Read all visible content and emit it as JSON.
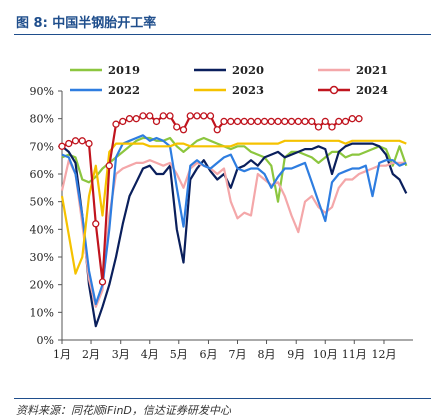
{
  "figure": {
    "title": "图 8:  中国半钢胎开工率",
    "source": "资料来源：同花顺iFinD，信达证券研发中心"
  },
  "chart_data": {
    "type": "line",
    "title": "",
    "xlabel": "",
    "ylabel": "",
    "ylim": [
      0,
      90
    ],
    "y_ticks": [
      0,
      10,
      20,
      30,
      40,
      50,
      60,
      70,
      80,
      90
    ],
    "y_tick_labels": [
      "0%",
      "10%",
      "20%",
      "30%",
      "40%",
      "50%",
      "60%",
      "70%",
      "80%",
      "90%"
    ],
    "x_unit": "week of year",
    "xlim": [
      1,
      53
    ],
    "x_ticks": [
      1,
      5.3,
      9.7,
      14,
      18.3,
      22.7,
      27,
      31.3,
      35.7,
      40,
      44.3,
      48.7
    ],
    "x_tick_labels": [
      "1月",
      "2月",
      "3月",
      "4月",
      "5月",
      "6月",
      "7月",
      "8月",
      "9月",
      "10月",
      "11月",
      "12月"
    ],
    "grid": false,
    "legend_position": "top",
    "series": [
      {
        "name": "2019",
        "color": "#8cc63f",
        "marker": false,
        "x": [
          1,
          2,
          3,
          4,
          5,
          6,
          7,
          8,
          9,
          10,
          11,
          12,
          13,
          14,
          15,
          16,
          17,
          18,
          19,
          20,
          21,
          22,
          23,
          24,
          25,
          26,
          27,
          28,
          29,
          30,
          31,
          32,
          33,
          34,
          35,
          36,
          37,
          38,
          39,
          40,
          41,
          42,
          43,
          44,
          45,
          46,
          47,
          48,
          49,
          50,
          51,
          52
        ],
        "values": [
          66,
          67,
          66,
          58,
          57,
          59,
          62,
          64,
          66,
          68,
          70,
          72,
          73,
          73,
          72,
          72,
          73,
          70,
          68,
          70,
          72,
          73,
          72,
          71,
          70,
          69,
          70,
          70,
          68,
          67,
          66,
          63,
          50,
          66,
          68,
          68,
          67,
          66,
          64,
          66,
          68,
          68,
          66,
          67,
          67,
          68,
          69,
          70,
          69,
          63,
          70,
          63
        ]
      },
      {
        "name": "2020",
        "color": "#0a1f5c",
        "marker": false,
        "x": [
          1,
          2,
          3,
          4,
          5,
          6,
          7,
          8,
          9,
          10,
          11,
          12,
          13,
          14,
          15,
          16,
          17,
          18,
          19,
          20,
          21,
          22,
          23,
          24,
          25,
          26,
          27,
          28,
          29,
          30,
          31,
          32,
          33,
          34,
          35,
          36,
          37,
          38,
          39,
          40,
          41,
          42,
          43,
          44,
          45,
          46,
          47,
          48,
          49,
          50,
          51,
          52
        ],
        "values": [
          70,
          68,
          64,
          45,
          20,
          5,
          12,
          20,
          30,
          42,
          52,
          57,
          62,
          63,
          60,
          60,
          63,
          40,
          28,
          58,
          62,
          65,
          61,
          58,
          60,
          55,
          62,
          63,
          65,
          63,
          66,
          67,
          68,
          66,
          67,
          68,
          69,
          69,
          70,
          69,
          60,
          68,
          70,
          71,
          71,
          71,
          71,
          70,
          67,
          60,
          58,
          53
        ]
      },
      {
        "name": "2021",
        "color": "#f4a7a9",
        "marker": false,
        "x": [
          1,
          2,
          3,
          4,
          5,
          6,
          7,
          8,
          9,
          10,
          11,
          12,
          13,
          14,
          15,
          16,
          17,
          18,
          19,
          20,
          21,
          22,
          23,
          24,
          25,
          26,
          27,
          28,
          29,
          30,
          31,
          32,
          33,
          34,
          35,
          36,
          37,
          38,
          39,
          40,
          41,
          42,
          43,
          44,
          45,
          46,
          47,
          48,
          49,
          50,
          51,
          52
        ],
        "values": [
          54,
          65,
          60,
          42,
          22,
          12,
          18,
          45,
          60,
          62,
          63,
          64,
          64,
          65,
          64,
          63,
          64,
          60,
          55,
          62,
          64,
          63,
          62,
          60,
          62,
          50,
          44,
          46,
          45,
          60,
          58,
          56,
          57,
          52,
          45,
          39,
          50,
          52,
          48,
          46,
          48,
          55,
          58,
          58,
          60,
          61,
          62,
          63,
          63,
          64,
          64,
          64
        ]
      },
      {
        "name": "2022",
        "color": "#2e7de0",
        "marker": false,
        "x": [
          1,
          2,
          3,
          4,
          5,
          6,
          7,
          8,
          9,
          10,
          11,
          12,
          13,
          14,
          15,
          16,
          17,
          18,
          19,
          20,
          21,
          22,
          23,
          24,
          25,
          26,
          27,
          28,
          29,
          30,
          31,
          32,
          33,
          34,
          35,
          36,
          37,
          38,
          39,
          40,
          41,
          42,
          43,
          44,
          45,
          46,
          47,
          48,
          49,
          50,
          51,
          52
        ],
        "values": [
          67,
          66,
          60,
          45,
          25,
          13,
          20,
          40,
          66,
          71,
          72,
          73,
          74,
          72,
          73,
          72,
          70,
          55,
          41,
          63,
          65,
          63,
          62,
          64,
          66,
          67,
          62,
          61,
          62,
          62,
          60,
          55,
          59,
          62,
          62,
          63,
          64,
          57,
          50,
          43,
          57,
          60,
          61,
          62,
          62,
          63,
          52,
          64,
          65,
          65,
          63,
          64
        ]
      },
      {
        "name": "2023",
        "color": "#f5c200",
        "marker": false,
        "x": [
          1,
          2,
          3,
          4,
          5,
          6,
          7,
          8,
          9,
          10,
          11,
          12,
          13,
          14,
          15,
          16,
          17,
          18,
          19,
          20,
          21,
          22,
          23,
          24,
          25,
          26,
          27,
          28,
          29,
          30,
          31,
          32,
          33,
          34,
          35,
          36,
          37,
          38,
          39,
          40,
          41,
          42,
          43,
          44,
          45,
          46,
          47,
          48,
          49,
          50,
          51,
          52
        ],
        "values": [
          52,
          38,
          24,
          30,
          52,
          63,
          45,
          68,
          71,
          71,
          71,
          71,
          71,
          70,
          70,
          70,
          70,
          71,
          71,
          70,
          70,
          70,
          70,
          70,
          70,
          70,
          71,
          71,
          71,
          71,
          71,
          71,
          71,
          72,
          72,
          72,
          72,
          72,
          72,
          72,
          72,
          72,
          71,
          72,
          72,
          72,
          72,
          72,
          72,
          72,
          72,
          71
        ]
      },
      {
        "name": "2024",
        "color": "#c0141e",
        "marker": true,
        "x": [
          1,
          2,
          3,
          4,
          5,
          6,
          7,
          8,
          9,
          10,
          11,
          12,
          13,
          14,
          15,
          16,
          17,
          18,
          19,
          20,
          21,
          22,
          23,
          24,
          25,
          26,
          27,
          28,
          29,
          30,
          31,
          32,
          33,
          34,
          35,
          36,
          37,
          38,
          39,
          40,
          41,
          42,
          43,
          44,
          45
        ],
        "values": [
          70,
          71,
          72,
          72,
          71,
          42,
          21,
          63,
          78,
          79,
          80,
          80,
          81,
          81,
          79,
          81,
          81,
          77,
          76,
          81,
          81,
          81,
          81,
          76,
          79,
          79,
          79,
          79,
          79,
          79,
          79,
          79,
          79,
          79,
          79,
          79,
          79,
          79,
          77,
          79,
          77,
          79,
          79,
          80,
          80
        ]
      }
    ]
  }
}
